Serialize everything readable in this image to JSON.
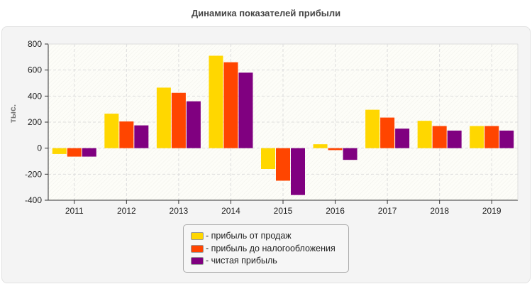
{
  "chart_data": {
    "type": "bar",
    "title": "Динамика показателей прибыли",
    "ylabel": "тыс.",
    "xlabel": "",
    "ylim": [
      -400,
      800
    ],
    "yticks": [
      -400,
      -200,
      0,
      200,
      400,
      600,
      800
    ],
    "grid": true,
    "legend_position": "bottom",
    "categories": [
      "2011",
      "2012",
      "2013",
      "2014",
      "2015",
      "2016",
      "2017",
      "2018",
      "2019"
    ],
    "series": [
      {
        "name": "- прибыль от продаж",
        "color": "#ffd700",
        "values": [
          -45,
          265,
          465,
          710,
          -160,
          30,
          295,
          210,
          170
        ]
      },
      {
        "name": "- прибыль до налогообложения",
        "color": "#ff4500",
        "values": [
          -65,
          205,
          425,
          660,
          -250,
          -15,
          235,
          170,
          170
        ]
      },
      {
        "name": "- чистая прибыль",
        "color": "#800080",
        "values": [
          -65,
          175,
          360,
          580,
          -360,
          -90,
          150,
          135,
          135
        ]
      }
    ]
  }
}
